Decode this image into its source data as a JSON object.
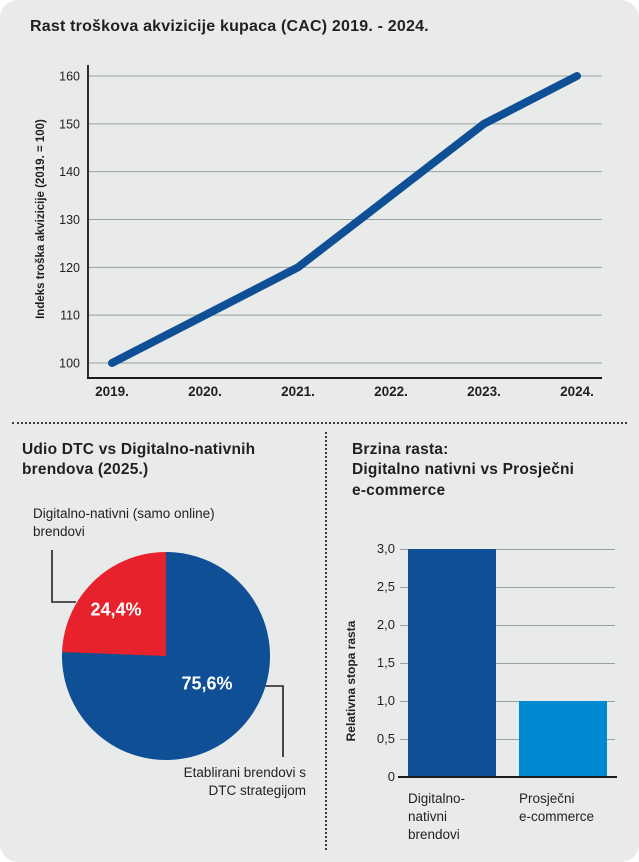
{
  "ui": {
    "card_bg": "#e8ebe9",
    "page_bg": "#ffffff",
    "text_color": "#231f20",
    "grid_color": "#9aa0a1",
    "axis_color": "#1a1a1a",
    "divider_color": "#3c3c3b",
    "dark_blue": "#0e4f96",
    "light_blue": "#0089d0",
    "red": "#e8222d"
  },
  "header": {
    "title": "Rast troškova akvizicije kupaca (CAC) 2019. - 2024."
  },
  "left_panel": {
    "title_lines": [
      "Udio DTC vs Digitalno-nativnih",
      "brendova (2025.)"
    ],
    "top_label_lines": [
      "Digitalno-nativni (samo online)",
      "brendovi"
    ],
    "bottom_label_lines": [
      "Etablirani brendovi s",
      "DTC strategijom"
    ]
  },
  "right_panel": {
    "title_lines": [
      "Brzina rasta:",
      "Digitalno nativni vs Prosječni",
      "e-commerce"
    ],
    "bar1_label_lines": [
      "Digitalno-",
      "nativni",
      "brendovi"
    ],
    "bar2_label_lines": [
      "Prosječni",
      "e-commerce"
    ]
  },
  "chart_data": [
    {
      "id": "cac_line",
      "type": "line",
      "title": "Rast troškova akvizicije kupaca (CAC) 2019. - 2024.",
      "ylabel": "Indeks troška akvizicije (2019. = 100)",
      "categories": [
        "2019.",
        "2020.",
        "2021.",
        "2022.",
        "2023.",
        "2024."
      ],
      "values": [
        100,
        110,
        120,
        135,
        150,
        160
      ],
      "yticks": [
        100,
        110,
        120,
        130,
        140,
        150,
        160
      ],
      "ylim": [
        100,
        160
      ],
      "line_color": "#0e4f96",
      "grid": true,
      "legend": "none"
    },
    {
      "id": "dtc_pie",
      "type": "pie",
      "title": "Udio DTC vs Digitalno-nativnih brendova (2025.)",
      "slices": [
        {
          "label": "Etablirani brendovi s DTC strategijom",
          "value": 75.6,
          "display": "75,6%",
          "color": "#0e4f96"
        },
        {
          "label": "Digitalno-nativni (samo online) brendovi",
          "value": 24.4,
          "display": "24,4%",
          "color": "#e8222d"
        }
      ],
      "start_angle_deg": 0,
      "red_slice_direction": "counterclockwise-from-top"
    },
    {
      "id": "growth_bar",
      "type": "bar",
      "title": "Brzina rasta: Digitalno nativni vs Prosječni e-commerce",
      "ylabel": "Relativna stopa rasta",
      "categories": [
        "Digitalno-nativni brendovi",
        "Prosječni e-commerce"
      ],
      "values": [
        3.0,
        1.0
      ],
      "yticks": [
        3.0,
        2.5,
        2.0,
        1.5,
        1.0,
        0.5,
        0
      ],
      "ytick_labels": [
        "3,0",
        "2,5",
        "2,0",
        "1,5",
        "1,0",
        "0,5",
        "0"
      ],
      "ylim": [
        0,
        3
      ],
      "bar_colors": [
        "#0e4f96",
        "#0089d0"
      ],
      "grid": true
    }
  ]
}
